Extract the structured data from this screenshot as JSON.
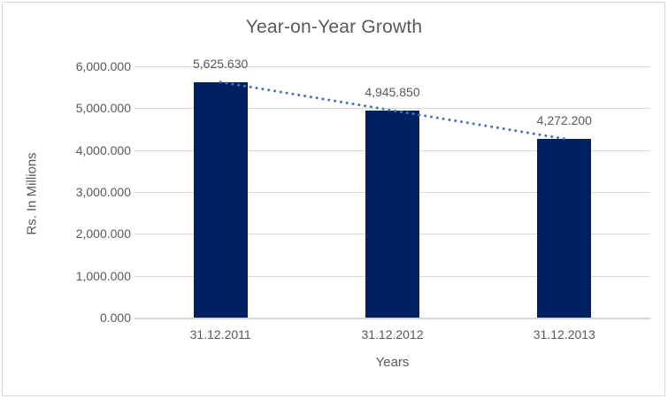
{
  "window": {
    "background": "#ffffff",
    "frame_border_color": "#d9d9d9"
  },
  "chart_data": {
    "type": "bar",
    "title": "Year-on-Year Growth",
    "xlabel": "Years",
    "ylabel": "Rs. In Millions",
    "categories": [
      "31.12.2011",
      "31.12.2012",
      "31.12.2013"
    ],
    "values": [
      5625.63,
      4945.85,
      4272.2
    ],
    "data_labels": [
      "5,625.630",
      "4,945.850",
      "4,272.200"
    ],
    "ylim": [
      0,
      6000
    ],
    "ytick_step": 1000,
    "ytick_labels": [
      "0.000",
      "1,000.000",
      "2,000.000",
      "3,000.000",
      "4,000.000",
      "5,000.000",
      "6,000.000"
    ],
    "grid": true,
    "legend": false,
    "bar_color": "#002060",
    "gridline_color": "#d9d9d9",
    "axis_line_color": "#d6d6d6",
    "text_color": "#595959",
    "trendline": {
      "type": "linear",
      "style": "dotted",
      "color": "#4472c4"
    }
  }
}
